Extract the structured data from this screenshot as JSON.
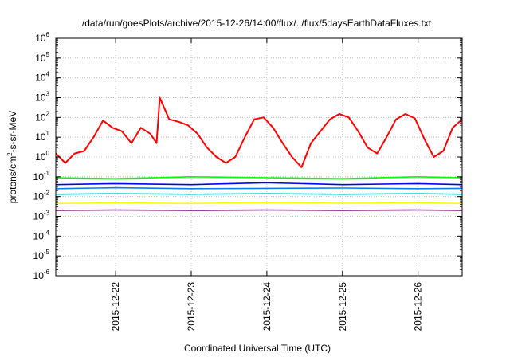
{
  "chart_data": {
    "type": "line",
    "title": "/data/run/goesPlots/archive/2015-12-26/14:00/flux/../flux/5daysEarthDataFluxes.txt",
    "xlabel": "Coordinated Universal Time (UTC)",
    "ylabel_parts": [
      "protons/cm",
      "2",
      "-s-sr-MeV"
    ],
    "ylabel": "protons/cm2-s-sr-MeV",
    "yscale": "log",
    "ylim": [
      1e-06,
      1000000.0
    ],
    "xlim": [
      "2015-12-21T05:00",
      "2015-12-26T14:00"
    ],
    "grid": true,
    "x_ticks": [
      {
        "label": "2015-12-22",
        "x": "2015-12-22T00:00"
      },
      {
        "label": "2015-12-23",
        "x": "2015-12-23T00:00"
      },
      {
        "label": "2015-12-24",
        "x": "2015-12-24T00:00"
      },
      {
        "label": "2015-12-25",
        "x": "2015-12-25T00:00"
      },
      {
        "label": "2015-12-26",
        "x": "2015-12-26T00:00"
      }
    ],
    "y_ticks": [
      {
        "base": "10",
        "exp": "-6",
        "value": 1e-06
      },
      {
        "base": "10",
        "exp": "-5",
        "value": 1e-05
      },
      {
        "base": "10",
        "exp": "-4",
        "value": 0.0001
      },
      {
        "base": "10",
        "exp": "-3",
        "value": 0.001
      },
      {
        "base": "10",
        "exp": "-2",
        "value": 0.01
      },
      {
        "base": "10",
        "exp": "-1",
        "value": 0.1
      },
      {
        "base": "10",
        "exp": "0",
        "value": 1
      },
      {
        "base": "10",
        "exp": "1",
        "value": 10
      },
      {
        "base": "10",
        "exp": "2",
        "value": 100
      },
      {
        "base": "10",
        "exp": "3",
        "value": 1000
      },
      {
        "base": "10",
        "exp": "4",
        "value": 10000
      },
      {
        "base": "10",
        "exp": "5",
        "value": 100000
      },
      {
        "base": "10",
        "exp": "6",
        "value": 1000000
      }
    ],
    "series": [
      {
        "color": "#ff0000",
        "x": [
          "2015-12-21T05:00",
          "2015-12-21T08:00",
          "2015-12-21T11:00",
          "2015-12-21T14:00",
          "2015-12-21T17:00",
          "2015-12-21T20:00",
          "2015-12-21T23:00",
          "2015-12-22T02:00",
          "2015-12-22T05:00",
          "2015-12-22T08:00",
          "2015-12-22T11:00",
          "2015-12-22T13:00",
          "2015-12-22T14:00",
          "2015-12-22T17:00",
          "2015-12-22T20:00",
          "2015-12-22T23:00",
          "2015-12-23T02:00",
          "2015-12-23T05:00",
          "2015-12-23T08:00",
          "2015-12-23T11:00",
          "2015-12-23T14:00",
          "2015-12-23T17:00",
          "2015-12-23T20:00",
          "2015-12-23T23:00",
          "2015-12-24T02:00",
          "2015-12-24T05:00",
          "2015-12-24T08:00",
          "2015-12-24T11:00",
          "2015-12-24T14:00",
          "2015-12-24T17:00",
          "2015-12-24T20:00",
          "2015-12-24T23:00",
          "2015-12-25T02:00",
          "2015-12-25T05:00",
          "2015-12-25T08:00",
          "2015-12-25T11:00",
          "2015-12-25T14:00",
          "2015-12-25T17:00",
          "2015-12-25T20:00",
          "2015-12-25T23:00",
          "2015-12-26T02:00",
          "2015-12-26T05:00",
          "2015-12-26T08:00",
          "2015-12-26T11:00",
          "2015-12-26T14:00"
        ],
        "y": [
          1.5,
          0.5,
          1.5,
          2,
          10,
          70,
          30,
          20,
          5,
          30,
          15,
          5,
          1000,
          80,
          60,
          40,
          15,
          3,
          1,
          0.5,
          1,
          10,
          80,
          100,
          30,
          5,
          1,
          0.3,
          5,
          20,
          80,
          150,
          100,
          20,
          3,
          1.5,
          10,
          80,
          150,
          90,
          8,
          1,
          2,
          30,
          80
        ]
      },
      {
        "color": "#00ff00",
        "x": [
          "2015-12-21T05:00",
          "2015-12-22T00:00",
          "2015-12-23T00:00",
          "2015-12-24T00:00",
          "2015-12-25T00:00",
          "2015-12-26T00:00",
          "2015-12-26T14:00"
        ],
        "y": [
          0.09,
          0.08,
          0.1,
          0.09,
          0.08,
          0.1,
          0.09
        ]
      },
      {
        "color": "#0000ff",
        "x": [
          "2015-12-21T05:00",
          "2015-12-22T00:00",
          "2015-12-23T00:00",
          "2015-12-24T00:00",
          "2015-12-25T00:00",
          "2015-12-26T00:00",
          "2015-12-26T14:00"
        ],
        "y": [
          0.04,
          0.045,
          0.04,
          0.05,
          0.04,
          0.045,
          0.04
        ]
      },
      {
        "color": "#0080ff",
        "x": [
          "2015-12-21T05:00",
          "2015-12-22T00:00",
          "2015-12-23T00:00",
          "2015-12-24T00:00",
          "2015-12-25T00:00",
          "2015-12-26T00:00",
          "2015-12-26T14:00"
        ],
        "y": [
          0.025,
          0.028,
          0.025,
          0.026,
          0.027,
          0.025,
          0.026
        ]
      },
      {
        "color": "#00c8c8",
        "x": [
          "2015-12-21T05:00",
          "2015-12-22T00:00",
          "2015-12-23T00:00",
          "2015-12-24T00:00",
          "2015-12-25T00:00",
          "2015-12-26T00:00",
          "2015-12-26T14:00"
        ],
        "y": [
          0.013,
          0.014,
          0.013,
          0.014,
          0.013,
          0.014,
          0.013
        ]
      },
      {
        "color": "#ffff00",
        "x": [
          "2015-12-21T05:00",
          "2015-12-22T00:00",
          "2015-12-23T00:00",
          "2015-12-24T00:00",
          "2015-12-25T00:00",
          "2015-12-26T00:00",
          "2015-12-26T14:00"
        ],
        "y": [
          0.0045,
          0.0048,
          0.0045,
          0.005,
          0.0046,
          0.0048,
          0.0045
        ]
      },
      {
        "color": "#800080",
        "x": [
          "2015-12-21T05:00",
          "2015-12-22T00:00",
          "2015-12-23T00:00",
          "2015-12-24T00:00",
          "2015-12-25T00:00",
          "2015-12-26T00:00",
          "2015-12-26T14:00"
        ],
        "y": [
          0.002,
          0.0021,
          0.002,
          0.0021,
          0.002,
          0.0021,
          0.002
        ]
      }
    ]
  }
}
